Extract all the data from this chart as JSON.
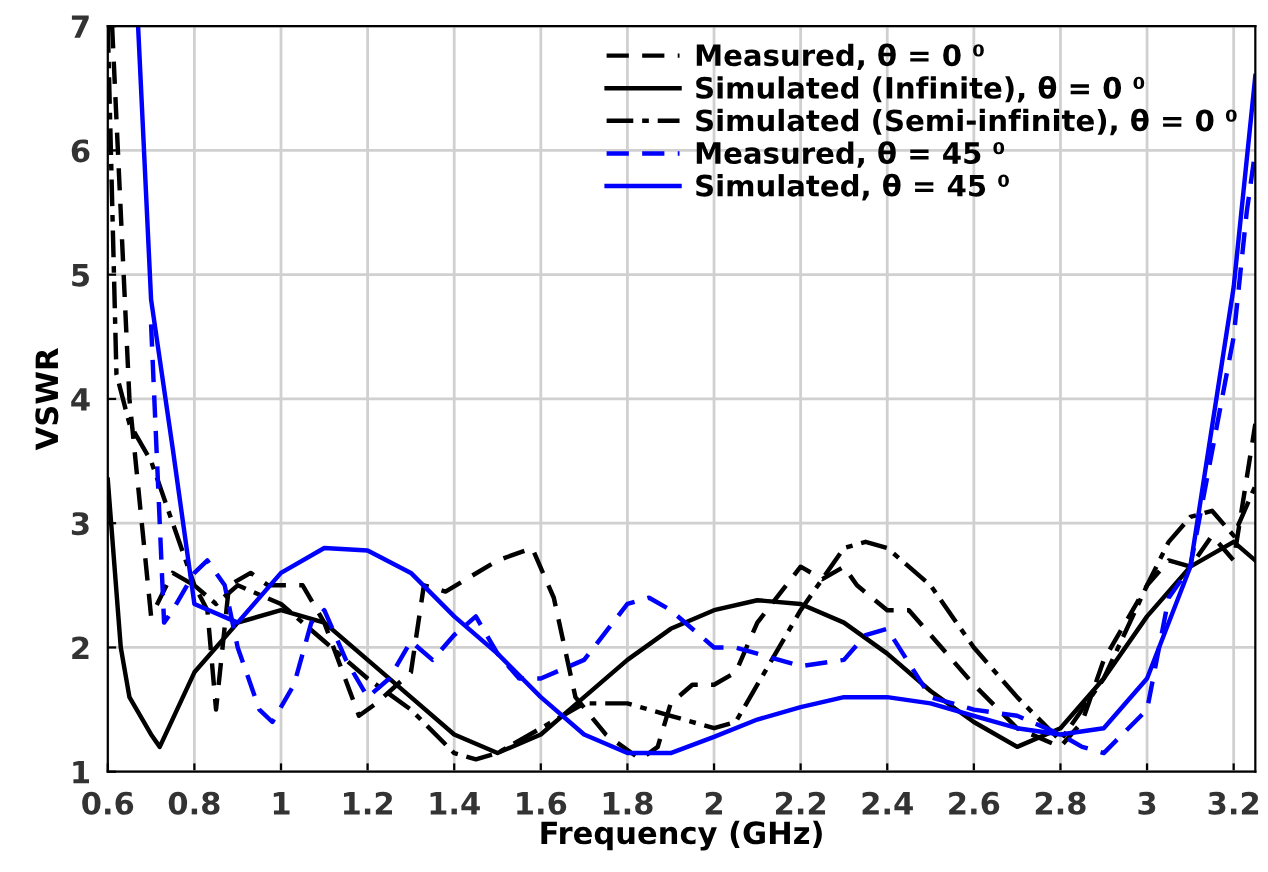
{
  "chart_data": {
    "type": "line",
    "xlabel": "Frequency (GHz)",
    "ylabel": "VSWR",
    "xlim": [
      0.6,
      3.25
    ],
    "ylim": [
      1,
      7
    ],
    "xticks": [
      0.6,
      0.8,
      1,
      1.2,
      1.4,
      1.6,
      1.8,
      2,
      2.2,
      2.4,
      2.6,
      2.8,
      3,
      3.2
    ],
    "yticks": [
      1,
      2,
      3,
      4,
      5,
      6,
      7
    ],
    "grid": true,
    "legend": "top right",
    "marker": "none",
    "series": [
      {
        "name": "Measured, θ = 0 ⁰",
        "color": "#000000",
        "line_style": "dashed",
        "x": [
          0.61,
          0.65,
          0.7,
          0.75,
          0.8,
          0.83,
          0.85,
          0.88,
          0.93,
          0.97,
          1.05,
          1.1,
          1.18,
          1.22,
          1.3,
          1.33,
          1.38,
          1.5,
          1.58,
          1.63,
          1.68,
          1.75,
          1.83,
          1.87,
          1.9,
          1.95,
          2.0,
          2.05,
          2.1,
          2.2,
          2.25,
          2.3,
          2.33,
          2.4,
          2.45,
          2.5,
          2.6,
          2.7,
          2.8,
          2.85,
          2.9,
          3.0,
          3.05,
          3.1,
          3.15,
          3.2,
          3.25
        ],
        "values": [
          7,
          4,
          2.25,
          2.6,
          2.5,
          2.3,
          1.5,
          2.5,
          2.6,
          2.5,
          2.5,
          2.2,
          1.45,
          1.55,
          1.8,
          2.5,
          2.45,
          2.7,
          2.8,
          2.4,
          1.6,
          1.3,
          1.1,
          1.2,
          1.55,
          1.7,
          1.7,
          1.8,
          2.2,
          2.65,
          2.55,
          2.65,
          2.5,
          2.3,
          2.3,
          2.1,
          1.7,
          1.35,
          1.2,
          1.4,
          1.9,
          2.5,
          2.7,
          2.65,
          2.9,
          2.7,
          3.8
        ]
      },
      {
        "name": "Simulated (Infinite), θ = 0 ⁰",
        "color": "#000000",
        "line_style": "solid",
        "x": [
          0.6,
          0.63,
          0.65,
          0.7,
          0.72,
          0.8,
          0.9,
          1.0,
          1.1,
          1.2,
          1.3,
          1.4,
          1.5,
          1.6,
          1.7,
          1.8,
          1.9,
          2.0,
          2.1,
          2.2,
          2.3,
          2.4,
          2.5,
          2.6,
          2.7,
          2.8,
          2.9,
          3.0,
          3.1,
          3.2,
          3.25
        ],
        "values": [
          3.35,
          2.0,
          1.6,
          1.3,
          1.2,
          1.8,
          2.2,
          2.3,
          2.2,
          1.9,
          1.6,
          1.3,
          1.15,
          1.3,
          1.6,
          1.9,
          2.15,
          2.3,
          2.38,
          2.35,
          2.2,
          1.95,
          1.65,
          1.4,
          1.2,
          1.35,
          1.75,
          2.25,
          2.65,
          2.85,
          2.7
        ]
      },
      {
        "name": "Simulated (Semi-infinite), θ = 0 ⁰",
        "color": "#000000",
        "line_style": "dashdot",
        "x": [
          0.6,
          0.62,
          0.65,
          0.7,
          0.75,
          0.8,
          0.85,
          0.9,
          1.0,
          1.1,
          1.2,
          1.3,
          1.4,
          1.45,
          1.5,
          1.6,
          1.7,
          1.8,
          1.9,
          2.0,
          2.05,
          2.1,
          2.2,
          2.3,
          2.35,
          2.4,
          2.5,
          2.6,
          2.7,
          2.8,
          2.9,
          3.0,
          3.05,
          3.1,
          3.15,
          3.2,
          3.25
        ],
        "values": [
          7,
          4.2,
          3.8,
          3.5,
          3.0,
          2.5,
          2.35,
          2.5,
          2.35,
          2.05,
          1.75,
          1.5,
          1.15,
          1.1,
          1.15,
          1.35,
          1.55,
          1.55,
          1.45,
          1.35,
          1.4,
          1.7,
          2.3,
          2.8,
          2.85,
          2.8,
          2.5,
          2.0,
          1.6,
          1.25,
          1.75,
          2.5,
          2.85,
          3.05,
          3.1,
          2.9,
          3.3
        ]
      },
      {
        "name": "Measured, θ = 45 ⁰",
        "color": "#0000ff",
        "line_style": "dashed",
        "x": [
          0.7,
          0.73,
          0.75,
          0.8,
          0.83,
          0.87,
          0.9,
          0.95,
          0.98,
          1.03,
          1.07,
          1.1,
          1.15,
          1.2,
          1.25,
          1.3,
          1.35,
          1.4,
          1.45,
          1.5,
          1.55,
          1.6,
          1.7,
          1.8,
          1.85,
          1.9,
          2.0,
          2.05,
          2.1,
          2.2,
          2.3,
          2.35,
          2.4,
          2.5,
          2.6,
          2.7,
          2.8,
          2.85,
          2.9,
          3.0,
          3.05,
          3.1,
          3.2,
          3.23,
          3.25
        ],
        "values": [
          4.6,
          2.2,
          2.3,
          2.6,
          2.7,
          2.5,
          2.0,
          1.5,
          1.4,
          1.7,
          2.2,
          2.3,
          1.9,
          1.6,
          1.75,
          2.05,
          1.9,
          2.1,
          2.25,
          1.95,
          1.75,
          1.75,
          1.9,
          2.35,
          2.4,
          2.3,
          2.0,
          2.0,
          1.95,
          1.85,
          1.9,
          2.1,
          2.15,
          1.6,
          1.5,
          1.45,
          1.3,
          1.2,
          1.15,
          1.5,
          2.4,
          2.65,
          4.5,
          5.5,
          6.0
        ]
      },
      {
        "name": "Simulated, θ = 45 ⁰",
        "color": "#0000ff",
        "line_style": "solid",
        "x": [
          0.67,
          0.7,
          0.75,
          0.8,
          0.9,
          1.0,
          1.1,
          1.2,
          1.3,
          1.4,
          1.5,
          1.6,
          1.7,
          1.8,
          1.9,
          2.0,
          2.1,
          2.2,
          2.3,
          2.4,
          2.5,
          2.6,
          2.7,
          2.8,
          2.9,
          3.0,
          3.1,
          3.2,
          3.25
        ],
        "values": [
          7,
          4.8,
          3.6,
          2.35,
          2.2,
          2.6,
          2.8,
          2.78,
          2.6,
          2.25,
          1.95,
          1.6,
          1.3,
          1.15,
          1.15,
          1.28,
          1.42,
          1.52,
          1.6,
          1.6,
          1.55,
          1.45,
          1.35,
          1.3,
          1.35,
          1.75,
          2.65,
          4.9,
          6.6
        ]
      }
    ]
  }
}
